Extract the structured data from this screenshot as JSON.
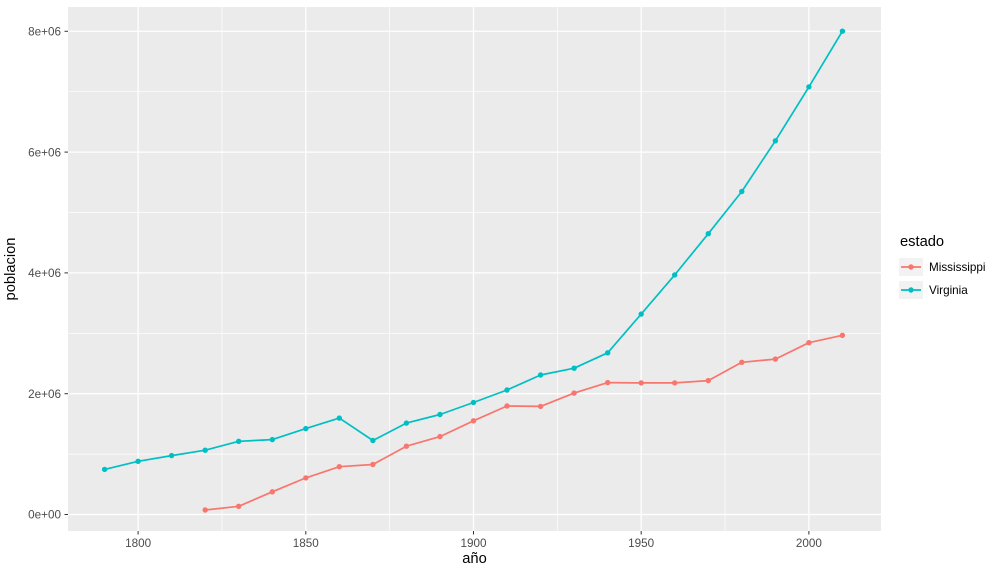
{
  "chart_data": {
    "type": "line",
    "title": "",
    "xlabel": "año",
    "ylabel": "poblacion",
    "legend_title": "estado",
    "legend_position": "right",
    "grid": "white major and minor gridlines on gray panel",
    "x_ticks": [
      1800,
      1850,
      1900,
      1950,
      2000
    ],
    "x_tick_labels": [
      "1800",
      "1850",
      "1900",
      "1950",
      "2000"
    ],
    "x_minor_ticks": [
      1825,
      1875,
      1925,
      1975
    ],
    "y_ticks": [
      0,
      2000000,
      4000000,
      6000000,
      8000000
    ],
    "y_tick_labels": [
      "0e+00",
      "2e+06",
      "4e+06",
      "6e+06",
      "8e+06"
    ],
    "y_minor_ticks": [
      1000000,
      3000000,
      5000000,
      7000000
    ],
    "xlim": [
      1779.1,
      2021.5
    ],
    "ylim": [
      -273000,
      8402000
    ],
    "colors": {
      "panel_background": "#EBEBEB",
      "grid": "#FFFFFF",
      "tick_text": "#4D4D4D",
      "title_text": "#000000",
      "axis_tick_marks": "#333333",
      "legend_key_background": "#F2F2F2"
    },
    "series": [
      {
        "name": "Mississippi",
        "color": "#F8766D",
        "x": [
          1820,
          1830,
          1840,
          1850,
          1860,
          1870,
          1880,
          1890,
          1900,
          1910,
          1920,
          1930,
          1940,
          1950,
          1960,
          1970,
          1980,
          1990,
          2000,
          2010
        ],
        "y": [
          75448,
          136621,
          375651,
          606526,
          791305,
          827922,
          1131597,
          1289600,
          1551270,
          1797114,
          1790618,
          2009821,
          2183796,
          2178914,
          2178141,
          2216912,
          2520638,
          2573216,
          2844658,
          2967297
        ]
      },
      {
        "name": "Virginia",
        "color": "#00BFC4",
        "x": [
          1790,
          1800,
          1810,
          1820,
          1830,
          1840,
          1850,
          1860,
          1870,
          1880,
          1890,
          1900,
          1910,
          1920,
          1930,
          1940,
          1950,
          1960,
          1970,
          1980,
          1990,
          2000,
          2010
        ],
        "y": [
          747610,
          880200,
          974600,
          1065366,
          1211405,
          1239797,
          1421661,
          1596318,
          1225163,
          1512565,
          1655980,
          1854184,
          2061612,
          2309187,
          2421851,
          2677773,
          3318680,
          3966949,
          4648494,
          5346818,
          6187358,
          7078515,
          8001024
        ]
      }
    ]
  }
}
